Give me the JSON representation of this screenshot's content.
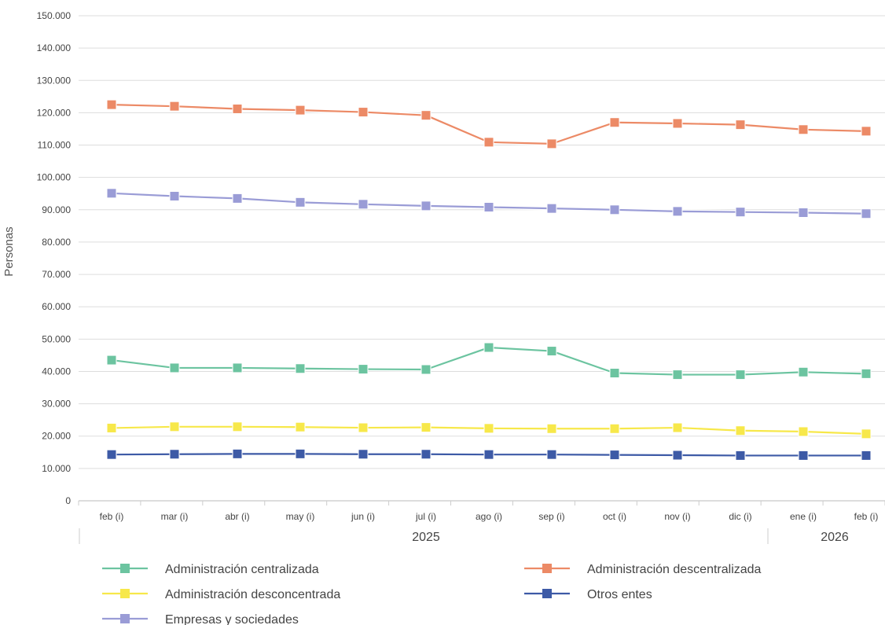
{
  "chart_data": {
    "type": "line",
    "title": "",
    "ylabel": "Personas",
    "xlabel": "",
    "ylim": [
      0,
      150000
    ],
    "yticks": [
      0,
      10000,
      20000,
      30000,
      40000,
      50000,
      60000,
      70000,
      80000,
      90000,
      100000,
      110000,
      120000,
      130000,
      140000,
      150000
    ],
    "ytick_labels": [
      "0",
      "10.000",
      "20.000",
      "30.000",
      "40.000",
      "50.000",
      "60.000",
      "70.000",
      "80.000",
      "90.000",
      "100.000",
      "110.000",
      "120.000",
      "130.000",
      "140.000",
      "150.000"
    ],
    "categories": [
      "feb (i)",
      "mar (i)",
      "abr (i)",
      "may (i)",
      "jun (i)",
      "jul (i)",
      "ago (i)",
      "sep (i)",
      "oct (i)",
      "nov (i)",
      "dic (i)",
      "ene (i)",
      "feb (i)"
    ],
    "year_groups": [
      {
        "label": "2025",
        "start": 0,
        "end": 10
      },
      {
        "label": "2026",
        "start": 11,
        "end": 12
      }
    ],
    "grid": true,
    "legend_position": "bottom",
    "series": [
      {
        "name": "Administración centralizada",
        "color": "#6cc4a0",
        "values": [
          43500,
          41100,
          41100,
          40900,
          40700,
          40600,
          47400,
          46300,
          39500,
          39000,
          39000,
          39800,
          39300
        ]
      },
      {
        "name": "Administración descentralizada",
        "color": "#ec8a66",
        "values": [
          122500,
          122000,
          121200,
          120800,
          120200,
          119200,
          110900,
          110400,
          117000,
          116700,
          116300,
          114800,
          114300
        ]
      },
      {
        "name": "Administración desconcentrada",
        "color": "#f7e84a",
        "values": [
          22500,
          22900,
          22900,
          22800,
          22600,
          22700,
          22400,
          22300,
          22300,
          22600,
          21700,
          21400,
          20700
        ]
      },
      {
        "name": "Otros entes",
        "color": "#3d5aa6",
        "values": [
          14300,
          14400,
          14500,
          14500,
          14400,
          14400,
          14300,
          14300,
          14200,
          14100,
          14000,
          14000,
          14000
        ]
      },
      {
        "name": "Empresas y sociedades",
        "color": "#9a9cd6",
        "values": [
          95100,
          94200,
          93500,
          92300,
          91700,
          91200,
          90800,
          90400,
          90000,
          89500,
          89300,
          89100,
          88800
        ]
      }
    ]
  }
}
